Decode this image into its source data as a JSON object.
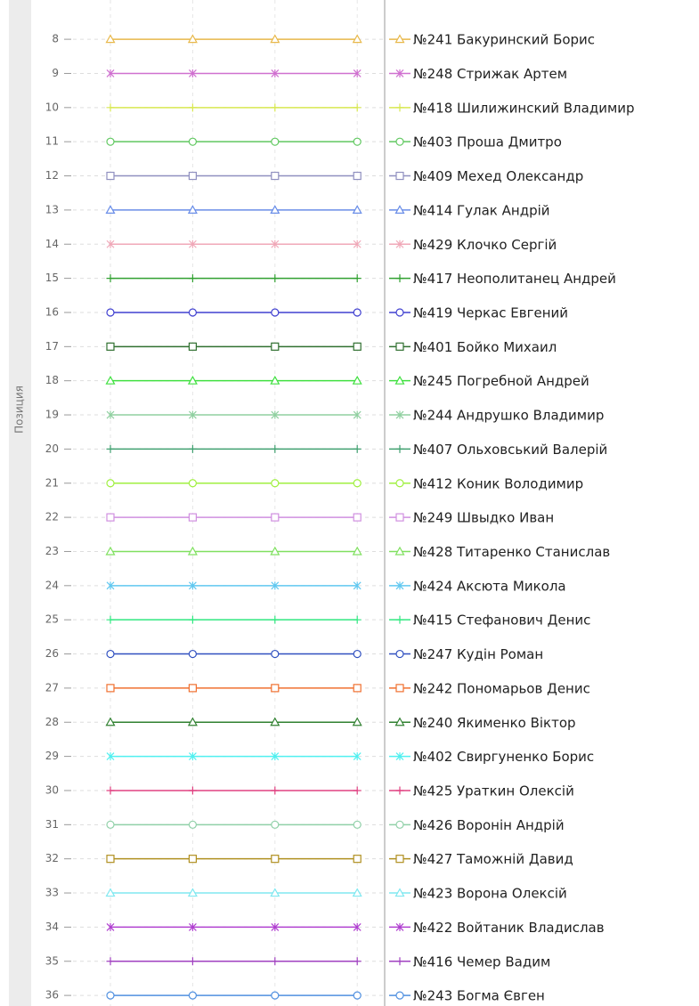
{
  "chart_data": {
    "type": "line",
    "y_label": "Позиция",
    "y_inverted": true,
    "grid": true,
    "categories": [
      null,
      null,
      null,
      null
    ],
    "ylim": [
      6.85,
      36.31
    ],
    "yticks": [
      8,
      9,
      10,
      11,
      12,
      13,
      14,
      15,
      16,
      17,
      18,
      19,
      20,
      21,
      22,
      23,
      24,
      25,
      26,
      27,
      28,
      29,
      30,
      31,
      32,
      33,
      34,
      35,
      36
    ],
    "series": [
      {
        "name": "№241 Бакуринский Борис",
        "color": "#e8b84a",
        "marker": "triangle",
        "values": [
          8,
          8,
          8,
          8
        ]
      },
      {
        "name": "№248 Стрижак Артем",
        "color": "#d070d0",
        "marker": "x",
        "values": [
          9,
          9,
          9,
          9
        ]
      },
      {
        "name": "№418 Шилижинский Владимир",
        "color": "#d8e850",
        "marker": "plus",
        "values": [
          10,
          10,
          10,
          10
        ]
      },
      {
        "name": "№403 Проша Дмитро",
        "color": "#60c860",
        "marker": "circle",
        "values": [
          11,
          11,
          11,
          11
        ]
      },
      {
        "name": "№409 Мехед Олександр",
        "color": "#9090c0",
        "marker": "square",
        "values": [
          12,
          12,
          12,
          12
        ]
      },
      {
        "name": "№414 Гулак Андрій",
        "color": "#6a8ee8",
        "marker": "triangle",
        "values": [
          13,
          13,
          13,
          13
        ]
      },
      {
        "name": "№429 Клочко Сергій",
        "color": "#f0a8b8",
        "marker": "x",
        "values": [
          14,
          14,
          14,
          14
        ]
      },
      {
        "name": "№417 Неополитанец Андрей",
        "color": "#30a030",
        "marker": "plus",
        "values": [
          15,
          15,
          15,
          15
        ]
      },
      {
        "name": "№419 Черкас Евгений",
        "color": "#4040d0",
        "marker": "circle",
        "values": [
          16,
          16,
          16,
          16
        ]
      },
      {
        "name": "№401 Бойко Михаил",
        "color": "#307030",
        "marker": "square",
        "values": [
          17,
          17,
          17,
          17
        ]
      },
      {
        "name": "№245 Погребной Андрей",
        "color": "#40e040",
        "marker": "triangle",
        "values": [
          18,
          18,
          18,
          18
        ]
      },
      {
        "name": "№244 Андрушко Владимир",
        "color": "#90d0a0",
        "marker": "x",
        "values": [
          19,
          19,
          19,
          19
        ]
      },
      {
        "name": "№407 Ольховський Валерій",
        "color": "#40a070",
        "marker": "plus",
        "values": [
          20,
          20,
          20,
          20
        ]
      },
      {
        "name": "№412 Коник Володимир",
        "color": "#a0f040",
        "marker": "circle",
        "values": [
          21,
          21,
          21,
          21
        ]
      },
      {
        "name": "№249 Швыдко Иван",
        "color": "#d090e0",
        "marker": "square",
        "values": [
          22,
          22,
          22,
          22
        ]
      },
      {
        "name": "№428 Титаренко Станислав",
        "color": "#80e060",
        "marker": "triangle",
        "values": [
          23,
          23,
          23,
          23
        ]
      },
      {
        "name": "№424 Аксюта Микола",
        "color": "#60c8f0",
        "marker": "x",
        "values": [
          24,
          24,
          24,
          24
        ]
      },
      {
        "name": "№415 Стефанович Денис",
        "color": "#30e880",
        "marker": "plus",
        "values": [
          25,
          25,
          25,
          25
        ]
      },
      {
        "name": "№247 Кудін Роман",
        "color": "#3050c0",
        "marker": "circle",
        "values": [
          26,
          26,
          26,
          26
        ]
      },
      {
        "name": "№242 Пономарьов Денис",
        "color": "#f07030",
        "marker": "square",
        "values": [
          27,
          27,
          27,
          27
        ]
      },
      {
        "name": "№240 Якименко Віктор",
        "color": "#308030",
        "marker": "triangle",
        "values": [
          28,
          28,
          28,
          28
        ]
      },
      {
        "name": "№402 Свиргуненко Борис",
        "color": "#50f0f0",
        "marker": "x",
        "values": [
          29,
          29,
          29,
          29
        ]
      },
      {
        "name": "№425 Ураткин Олексій",
        "color": "#e04080",
        "marker": "plus",
        "values": [
          30,
          30,
          30,
          30
        ]
      },
      {
        "name": "№426 Воронін Андрій",
        "color": "#90d0a8",
        "marker": "circle",
        "values": [
          31,
          31,
          31,
          31
        ]
      },
      {
        "name": "№427 Таможній Давид",
        "color": "#b09020",
        "marker": "square",
        "values": [
          32,
          32,
          32,
          32
        ]
      },
      {
        "name": "№423 Ворона Олексій",
        "color": "#80e8f0",
        "marker": "triangle",
        "values": [
          33,
          33,
          33,
          33
        ]
      },
      {
        "name": "№422 Войтаник Владислав",
        "color": "#b040d0",
        "marker": "x",
        "values": [
          34,
          34,
          34,
          34
        ]
      },
      {
        "name": "№416 Чемер Вадим",
        "color": "#a040c0",
        "marker": "plus",
        "values": [
          35,
          35,
          35,
          35
        ]
      },
      {
        "name": "№243 Богма Євген",
        "color": "#5090e0",
        "marker": "circle",
        "values": [
          36,
          36,
          36,
          36
        ]
      }
    ]
  }
}
